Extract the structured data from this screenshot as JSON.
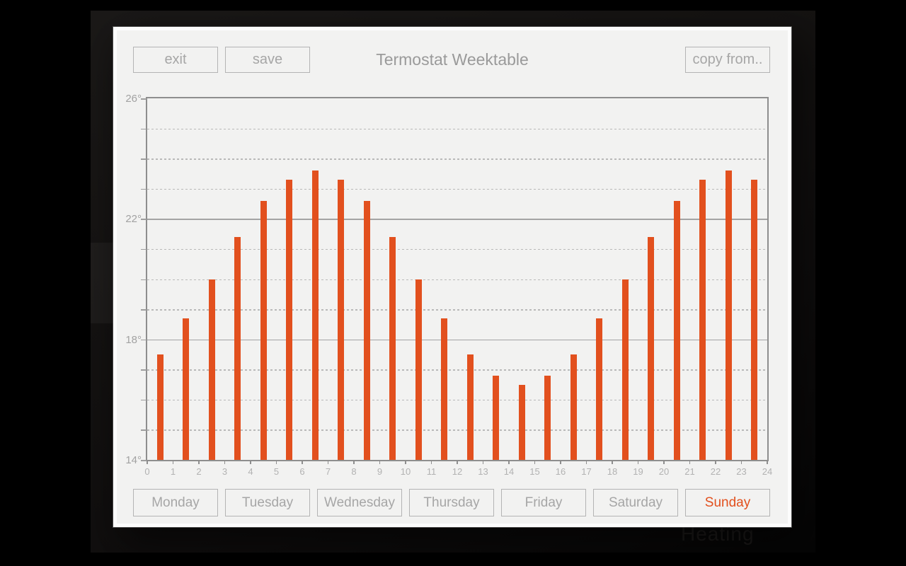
{
  "panel": {
    "title": "Termostat Weektable",
    "buttons": {
      "exit": "exit",
      "save": "save",
      "copy_from": "copy from.."
    }
  },
  "background": {
    "watermark": "Heating"
  },
  "days": [
    {
      "label": "Monday",
      "active": false
    },
    {
      "label": "Tuesday",
      "active": false
    },
    {
      "label": "Wednesday",
      "active": false
    },
    {
      "label": "Thursday",
      "active": false
    },
    {
      "label": "Friday",
      "active": false
    },
    {
      "label": "Saturday",
      "active": false
    },
    {
      "label": "Sunday",
      "active": true
    }
  ],
  "chart_data": {
    "type": "bar",
    "title": "",
    "xlabel": "",
    "ylabel": "",
    "unit": "degrees C",
    "hours": [
      0,
      1,
      2,
      3,
      4,
      5,
      6,
      7,
      8,
      9,
      10,
      11,
      12,
      13,
      14,
      15,
      16,
      17,
      18,
      19,
      20,
      21,
      22,
      23
    ],
    "values": [
      17.5,
      18.7,
      20.0,
      21.4,
      22.6,
      23.3,
      23.6,
      23.3,
      22.6,
      21.4,
      20.0,
      18.7,
      17.5,
      16.8,
      16.5,
      16.8,
      17.5,
      18.7,
      20.0,
      21.4,
      22.6,
      23.3,
      23.6,
      23.3
    ],
    "ylim": [
      14,
      26
    ],
    "ymajor_ticks": [
      26,
      22,
      18,
      14
    ],
    "ymajor_labels": [
      "26°",
      "22°",
      "18°",
      "14°"
    ],
    "xticks": [
      0,
      1,
      2,
      3,
      4,
      5,
      6,
      7,
      8,
      9,
      10,
      11,
      12,
      13,
      14,
      15,
      16,
      17,
      18,
      19,
      20,
      21,
      22,
      23,
      24
    ],
    "grid": {
      "solid_at": [
        26,
        22,
        18,
        14
      ],
      "dashed_every_degree": true
    },
    "legend": "none"
  },
  "colors": {
    "accent": "#e2501e",
    "panel_bg": "#f2f2f1",
    "muted_text": "#a6a6a6",
    "axis": "#8e8e8e"
  }
}
